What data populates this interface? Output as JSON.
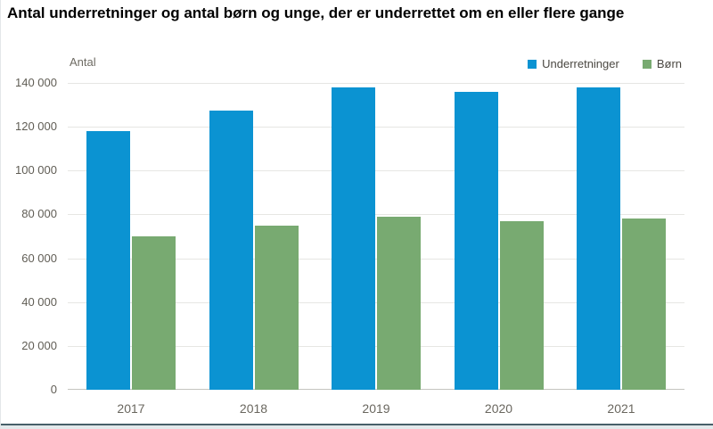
{
  "page": {
    "title": "Antal underretninger og antal børn og unge, der er underrettet om en eller flere gange"
  },
  "chart_data": {
    "type": "bar",
    "title": "Antal underretninger og antal børn og unge, der er underrettet om en eller flere gange",
    "ylabel": "Antal",
    "xlabel": "",
    "categories": [
      "2017",
      "2018",
      "2019",
      "2020",
      "2021"
    ],
    "series": [
      {
        "name": "Underretninger",
        "color": "#0b93d2",
        "values": [
          118000,
          127500,
          138000,
          136000,
          138000
        ]
      },
      {
        "name": "Børn",
        "color": "#78aa71",
        "values": [
          70000,
          75000,
          79000,
          77000,
          78000
        ]
      }
    ],
    "ylim": [
      0,
      140000
    ],
    "ytick_step": 20000,
    "yticks": [
      {
        "value": 0,
        "label": "0"
      },
      {
        "value": 20000,
        "label": "20 000"
      },
      {
        "value": 40000,
        "label": "40 000"
      },
      {
        "value": 60000,
        "label": "60 000"
      },
      {
        "value": 80000,
        "label": "80 000"
      },
      {
        "value": 100000,
        "label": "100 000"
      },
      {
        "value": 120000,
        "label": "120 000"
      },
      {
        "value": 140000,
        "label": "140 000"
      }
    ],
    "grid": "horizontal",
    "legend_position": "top-right"
  },
  "colors": {
    "bar_blue": "#0b93d2",
    "bar_green": "#78aa71",
    "gridline": "#e6e6e3",
    "baseline": "#c4c4c0",
    "tick_text": "#605d55",
    "axis_text": "#6a675f",
    "legend_text": "#4b4842",
    "title_text": "#000000",
    "bottom_line": "#475f69"
  }
}
